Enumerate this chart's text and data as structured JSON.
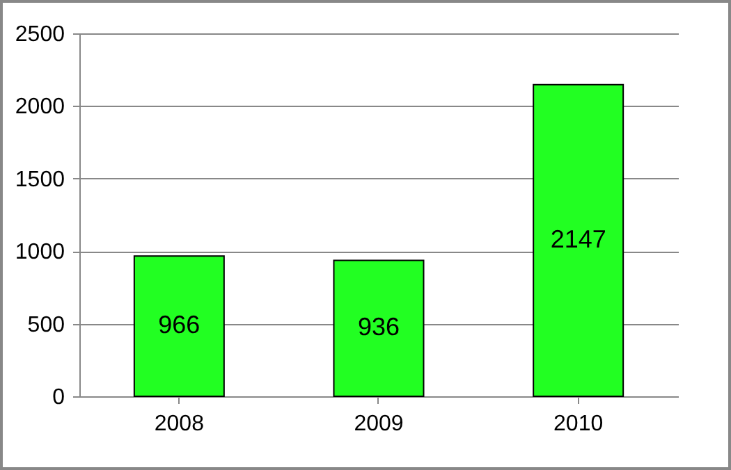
{
  "chart_data": {
    "type": "bar",
    "categories": [
      "2008",
      "2009",
      "2010"
    ],
    "values": [
      966,
      936,
      2147
    ],
    "color": "#22ff22",
    "ylim": [
      0,
      2500
    ],
    "yticks": [
      0,
      500,
      1000,
      1500,
      2000,
      2500
    ],
    "grid": "y",
    "data_labels": true
  }
}
